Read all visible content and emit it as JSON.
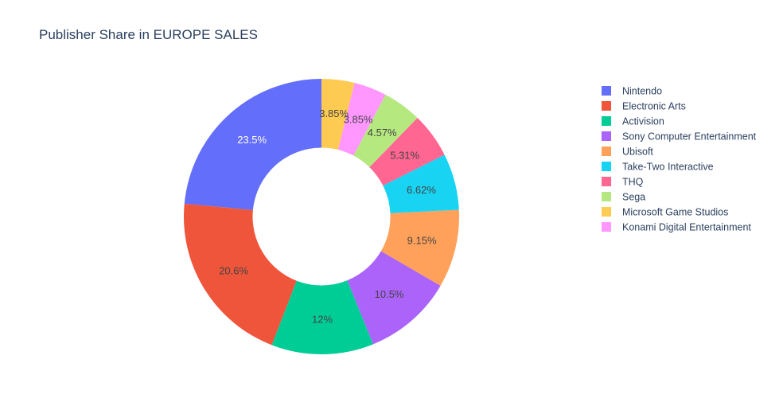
{
  "chart_data": {
    "type": "pie",
    "hole": 0.5,
    "title": "Publisher Share in EUROPE SALES",
    "labels": [
      "Nintendo",
      "Electronic Arts",
      "Activision",
      "Sony Computer Entertainment",
      "Ubisoft",
      "Take-Two Interactive",
      "THQ",
      "Sega",
      "Konami Digital Entertainment",
      "Microsoft Game Studios"
    ],
    "values": [
      23.5,
      20.6,
      12,
      10.5,
      9.15,
      6.62,
      5.31,
      4.57,
      3.85,
      3.85
    ],
    "text_labels": [
      "23.5%",
      "20.6%",
      "12%",
      "10.5%",
      "9.15%",
      "6.62%",
      "5.31%",
      "4.57%",
      "3.85%",
      "3.85%"
    ],
    "colors": [
      "#636efa",
      "#EF553B",
      "#00cc96",
      "#ab63fa",
      "#FFA15A",
      "#19d3f3",
      "#FF6692",
      "#B6E880",
      "#FF97FF",
      "#FECB52"
    ],
    "label_colors": [
      "#ffffff",
      "#444444",
      "#444444",
      "#444444",
      "#444444",
      "#444444",
      "#444444",
      "#444444",
      "#444444",
      "#444444"
    ],
    "legend_placement": "right",
    "legend_order": [
      0,
      1,
      2,
      3,
      4,
      5,
      6,
      7,
      9,
      8
    ],
    "direction": "counterclockwise",
    "sort": "descending",
    "rotation_start": "top"
  }
}
